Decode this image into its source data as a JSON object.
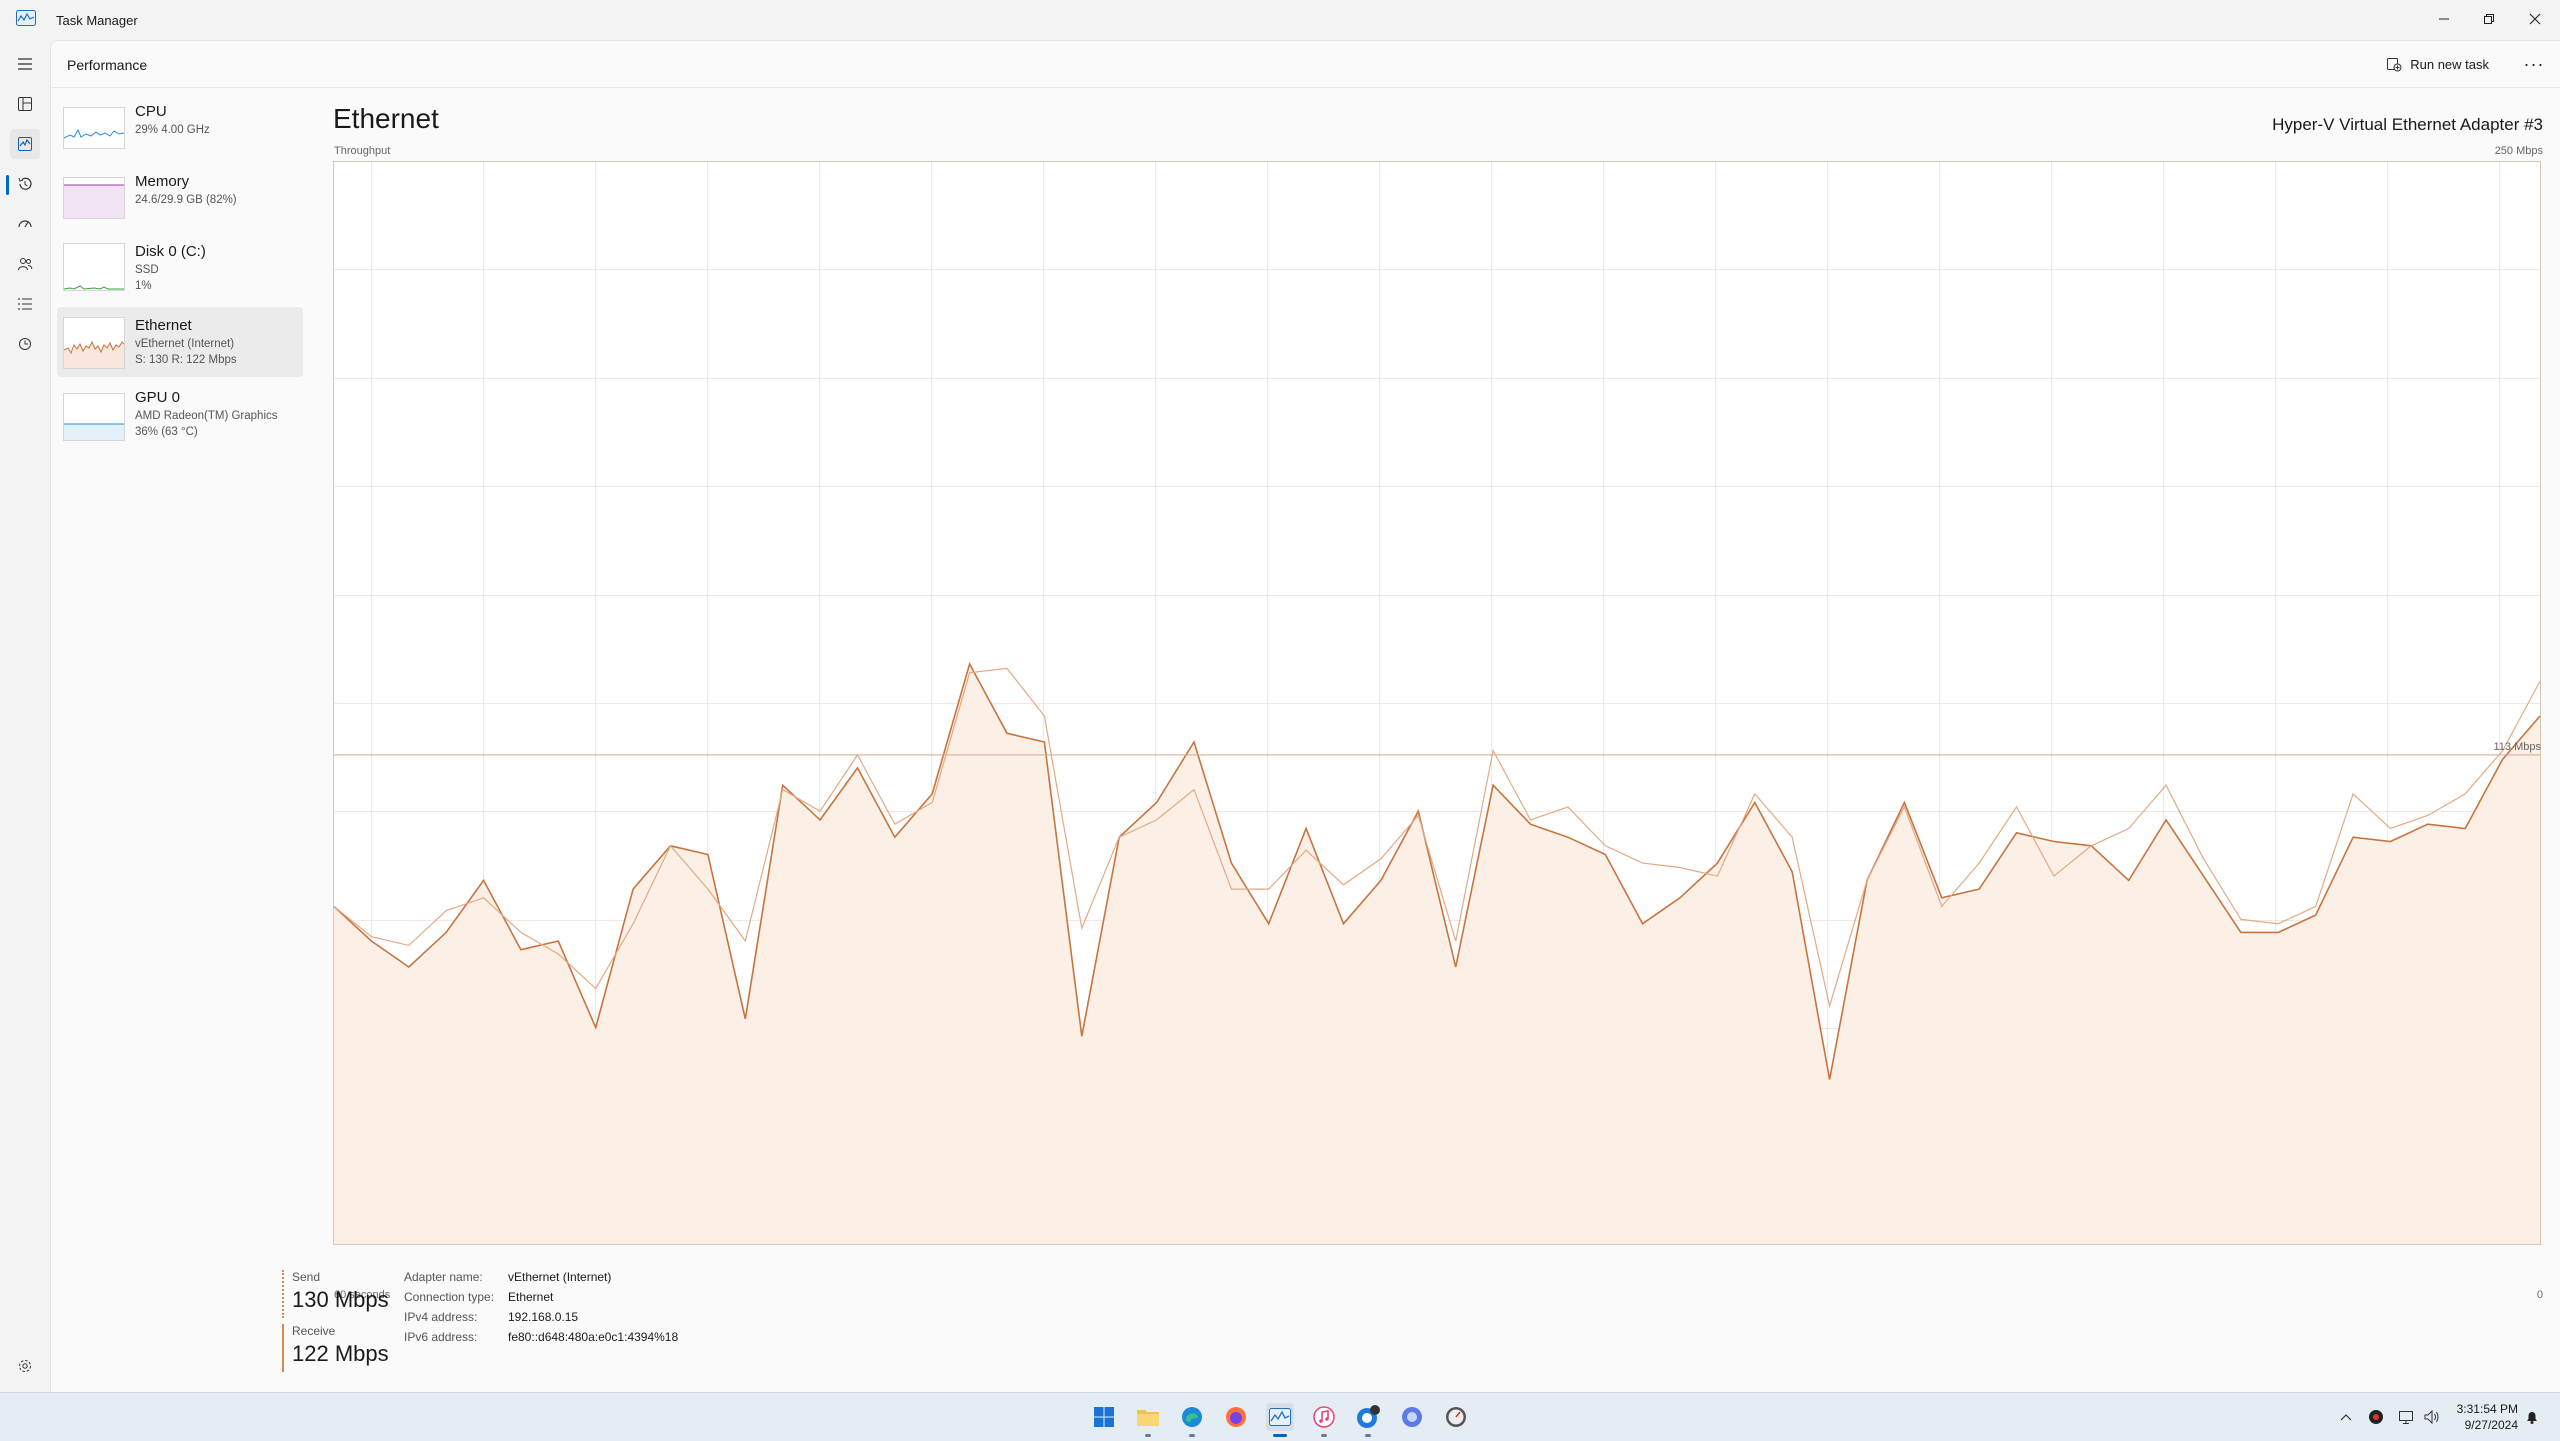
{
  "window": {
    "title": "Task Manager"
  },
  "header": {
    "page_title": "Performance",
    "run_task_label": "Run new task",
    "more_label": "···"
  },
  "sidebar": {
    "items": [
      {
        "name": "CPU",
        "line1": "29%  4.00 GHz",
        "line2": "",
        "selected": false,
        "color": "#1f8ed8"
      },
      {
        "name": "Memory",
        "line1": "24.6/29.9 GB (82%)",
        "line2": "",
        "selected": false,
        "color": "#9b3aa6"
      },
      {
        "name": "Disk 0 (C:)",
        "line1": "SSD",
        "line2": "1%",
        "selected": false,
        "color": "#3aa13a"
      },
      {
        "name": "Ethernet",
        "line1": "vEthernet (Internet)",
        "line2": "S: 130  R: 122 Mbps",
        "selected": true,
        "color": "#c8743f"
      },
      {
        "name": "GPU 0",
        "line1": "AMD Radeon(TM) Graphics",
        "line2": "36%  (63 °C)",
        "selected": false,
        "color": "#1f8ed8"
      }
    ]
  },
  "main": {
    "title": "Ethernet",
    "adapter_full_name": "Hyper-V Virtual Ethernet Adapter #3",
    "chart_caption": "Throughput",
    "chart_max_label": "250 Mbps",
    "chart_time_label": "60 seconds",
    "chart_zero_label": "0",
    "chart_ref_label": "113 Mbps"
  },
  "chart_data": {
    "type": "area",
    "ylim": [
      0,
      250
    ],
    "reference_line": 113,
    "x_points": 60,
    "series": [
      {
        "values": [
          78,
          70,
          64,
          72,
          84,
          68,
          70,
          50,
          82,
          92,
          90,
          52,
          106,
          98,
          110,
          94,
          104,
          134,
          118,
          116,
          48,
          94,
          102,
          116,
          88,
          74,
          96,
          74,
          84,
          100,
          64,
          106,
          97,
          94,
          90,
          74,
          80,
          88,
          102,
          86,
          38,
          84,
          102,
          80,
          82,
          95,
          93,
          92,
          84,
          98,
          85,
          72,
          72,
          76,
          94,
          93,
          97,
          96,
          112,
          122
        ]
      },
      {
        "values": [
          78,
          71,
          69,
          77,
          80,
          72,
          67,
          59,
          74,
          92,
          82,
          70,
          105,
          100,
          113,
          97,
          102,
          132,
          133,
          122,
          73,
          94,
          98,
          105,
          82,
          82,
          91,
          83,
          89,
          99,
          70,
          114,
          98,
          101,
          92,
          88,
          87,
          85,
          104,
          94,
          55,
          84,
          101,
          78,
          88,
          101,
          85,
          92,
          96,
          106,
          89,
          75,
          74,
          78,
          104,
          96,
          99,
          104,
          114,
          130
        ]
      }
    ]
  },
  "stats": {
    "send_label": "Send",
    "send_value": "130 Mbps",
    "recv_label": "Receive",
    "recv_value": "122 Mbps"
  },
  "props": [
    {
      "k": "Adapter name:",
      "v": "vEthernet (Internet)"
    },
    {
      "k": "Connection type:",
      "v": "Ethernet"
    },
    {
      "k": "IPv4 address:",
      "v": "192.168.0.15"
    },
    {
      "k": "IPv6 address:",
      "v": "fe80::d648:480a:e0c1:4394%18"
    }
  ],
  "taskbar": {
    "apps": [
      "start-icon",
      "file-explorer-icon",
      "edge-icon",
      "firefox-icon",
      "task-manager-icon",
      "itunes-icon",
      "chat-icon",
      "browser-icon",
      "clock-app-icon"
    ],
    "time": "3:31:54 PM",
    "date": "9/27/2024"
  }
}
